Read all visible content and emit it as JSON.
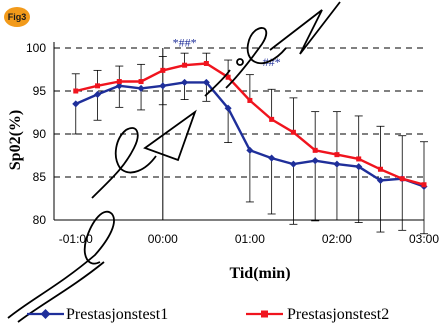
{
  "badge": {
    "label": "Fig3",
    "color": "#f29a1a"
  },
  "watermark": {
    "text": "Review"
  },
  "chart_data": {
    "type": "line",
    "title": "",
    "xlabel": "Tid(min)",
    "ylabel": "Sp02(%)",
    "x_ticks": [
      "-01:00",
      "00:00",
      "01:00",
      "02:00",
      "03:00"
    ],
    "y_ticks": [
      "80",
      "85",
      "90",
      "95",
      "100"
    ],
    "ylim": [
      80,
      100
    ],
    "xlim_minutes": [
      -1.25,
      3.0
    ],
    "grid": "horizontal dashed",
    "legend_position": "bottom",
    "x": [
      -1.0,
      -0.75,
      -0.5,
      -0.25,
      0.0,
      0.25,
      0.5,
      0.75,
      1.0,
      1.25,
      1.5,
      1.75,
      2.0,
      2.25,
      2.5,
      2.75,
      3.0
    ],
    "series": [
      {
        "name": "Prestasjonstest1",
        "color": "#1f2f9a",
        "values": [
          93.5,
          94.6,
          95.6,
          95.3,
          95.6,
          96.0,
          96.0,
          93.0,
          88.1,
          87.2,
          86.5,
          86.9,
          86.5,
          86.2,
          84.6,
          84.8,
          83.9
        ],
        "errors": [
          3.5,
          3.0,
          2.5,
          2.5,
          2.2,
          2.0,
          2.2,
          4.0,
          6.0,
          6.5,
          7.0,
          7.0,
          6.5,
          6.5,
          6.0,
          6.0,
          5.5
        ]
      },
      {
        "name": "Prestasjonstest2",
        "color": "#f0141e",
        "values": [
          95.0,
          95.6,
          96.1,
          96.1,
          97.4,
          98.0,
          98.2,
          96.6,
          93.9,
          91.7,
          90.2,
          88.1,
          87.6,
          87.1,
          85.9,
          84.8,
          84.1
        ],
        "errors": [
          2.0,
          1.8,
          1.8,
          2.0,
          1.6,
          1.4,
          1.2,
          2.0,
          3.0,
          3.5,
          4.0,
          4.5,
          5.0,
          5.0,
          5.0,
          5.0,
          5.0
        ]
      }
    ],
    "annotations": [
      {
        "text": "*##*",
        "x": 0.25,
        "y": 100.2
      },
      {
        "text": "##*",
        "x": 1.25,
        "y": 97.9
      }
    ]
  }
}
